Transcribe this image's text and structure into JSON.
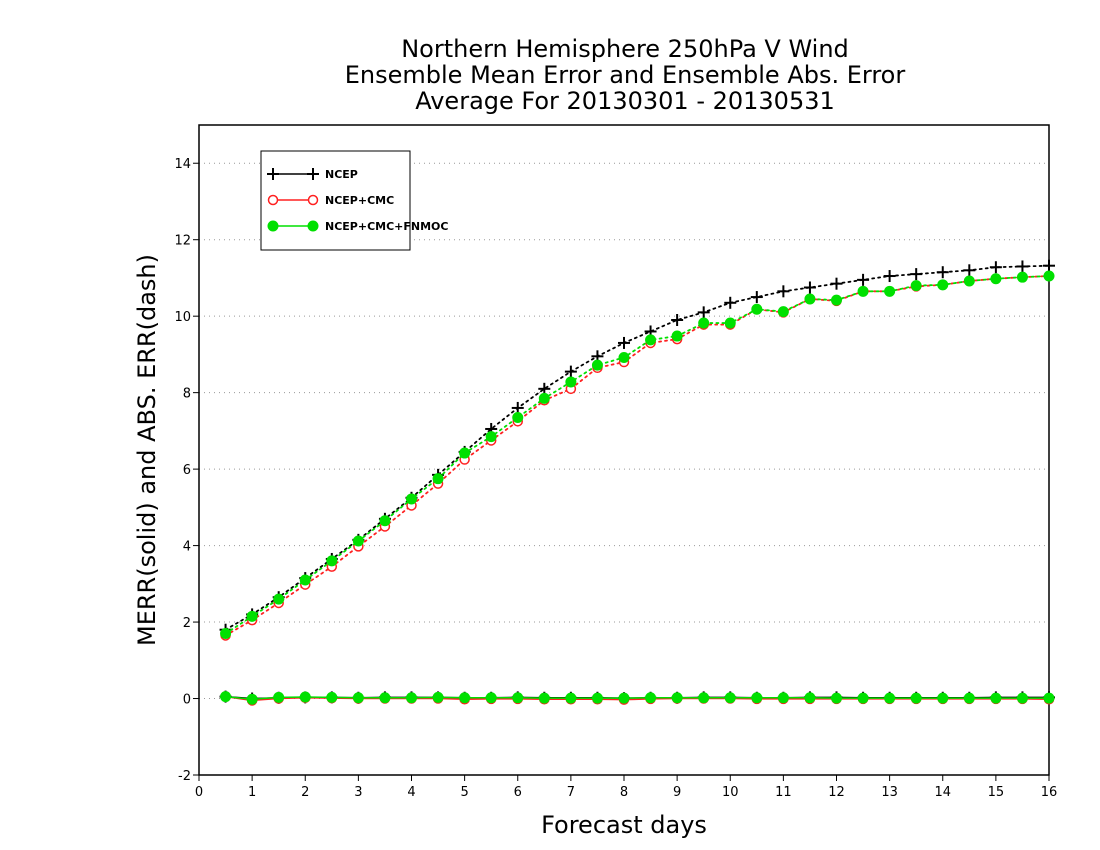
{
  "chart_data": {
    "type": "line",
    "title_lines": [
      "Northern Hemisphere 250hPa V Wind",
      "Ensemble Mean Error and Ensemble Abs. Error",
      "Average For 20130301 - 20130531"
    ],
    "xlabel": "Forecast days",
    "ylabel": "MERR(solid) and ABS. ERR(dash)",
    "xlim": [
      0,
      16
    ],
    "ylim": [
      -2,
      15
    ],
    "xticks": [
      "0",
      "1",
      "2",
      "3",
      "4",
      "5",
      "6",
      "7",
      "8",
      "9",
      "10",
      "11",
      "12",
      "13",
      "14",
      "15",
      "16"
    ],
    "yticks": [
      "-2",
      "0",
      "2",
      "4",
      "6",
      "8",
      "10",
      "12",
      "14"
    ],
    "grid": "horizontal dotted",
    "legend_position": "top-left",
    "x": [
      0.5,
      1,
      1.5,
      2,
      2.5,
      3,
      3.5,
      4,
      4.5,
      5,
      5.5,
      6,
      6.5,
      7,
      7.5,
      8,
      8.5,
      9,
      9.5,
      10,
      10.5,
      11,
      11.5,
      12,
      12.5,
      13,
      13.5,
      14,
      14.5,
      15,
      15.5,
      16
    ],
    "series": [
      {
        "name": "NCEP",
        "color": "#000000",
        "marker": "plus",
        "abs_err": [
          1.8,
          2.2,
          2.65,
          3.15,
          3.65,
          4.15,
          4.7,
          5.25,
          5.85,
          6.45,
          7.05,
          7.6,
          8.1,
          8.55,
          8.95,
          9.3,
          9.6,
          9.9,
          10.1,
          10.35,
          10.5,
          10.65,
          10.75,
          10.85,
          10.95,
          11.05,
          11.1,
          11.15,
          11.2,
          11.28,
          11.3,
          11.32
        ],
        "mean_err": [
          0.05,
          0.0,
          0.02,
          0.03,
          0.03,
          0.02,
          0.03,
          0.03,
          0.03,
          0.02,
          0.02,
          0.03,
          0.02,
          0.02,
          0.02,
          0.01,
          0.02,
          0.02,
          0.03,
          0.03,
          0.02,
          0.02,
          0.03,
          0.03,
          0.02,
          0.02,
          0.02,
          0.02,
          0.02,
          0.03,
          0.03,
          0.03
        ]
      },
      {
        "name": "NCEP+CMC",
        "color": "#ff2020",
        "marker": "open-circle",
        "abs_err": [
          1.65,
          2.05,
          2.5,
          2.98,
          3.45,
          3.98,
          4.5,
          5.05,
          5.62,
          6.25,
          6.75,
          7.25,
          7.8,
          8.1,
          8.65,
          8.8,
          9.3,
          9.4,
          9.78,
          9.78,
          10.18,
          10.1,
          10.45,
          10.4,
          10.65,
          10.65,
          10.78,
          10.82,
          10.92,
          10.98,
          11.02,
          11.05
        ],
        "mean_err": [
          0.05,
          -0.05,
          0.0,
          0.02,
          0.01,
          0.0,
          0.0,
          0.0,
          0.0,
          -0.02,
          -0.01,
          -0.01,
          -0.02,
          -0.02,
          -0.02,
          -0.03,
          -0.01,
          0.0,
          0.0,
          0.0,
          -0.01,
          -0.01,
          -0.01,
          -0.01,
          -0.01,
          -0.01,
          -0.01,
          -0.01,
          -0.01,
          -0.01,
          -0.01,
          -0.02
        ]
      },
      {
        "name": "NCEP+CMC+FNMOC",
        "color": "#00e000",
        "marker": "filled-circle",
        "abs_err": [
          1.7,
          2.15,
          2.6,
          3.1,
          3.6,
          4.12,
          4.65,
          5.22,
          5.75,
          6.42,
          6.85,
          7.35,
          7.85,
          8.28,
          8.72,
          8.92,
          9.38,
          9.48,
          9.82,
          9.82,
          10.18,
          10.12,
          10.45,
          10.42,
          10.65,
          10.65,
          10.8,
          10.82,
          10.92,
          10.98,
          11.02,
          11.05
        ],
        "mean_err": [
          0.05,
          -0.02,
          0.03,
          0.04,
          0.03,
          0.02,
          0.02,
          0.02,
          0.03,
          0.02,
          0.02,
          0.02,
          0.01,
          0.01,
          0.01,
          0.01,
          0.02,
          0.02,
          0.02,
          0.02,
          0.02,
          0.02,
          0.02,
          0.01,
          0.01,
          0.01,
          0.01,
          0.01,
          0.01,
          0.01,
          0.01,
          0.01
        ]
      }
    ]
  }
}
